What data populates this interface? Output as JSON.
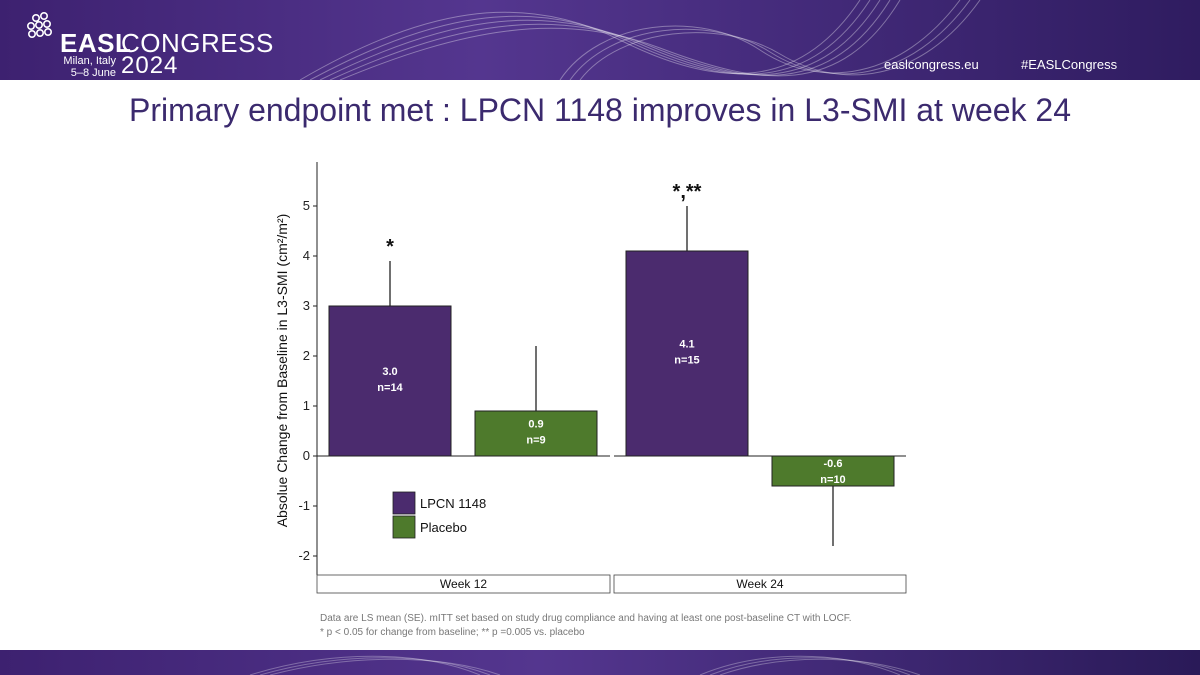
{
  "header": {
    "logo_easl": "EASL",
    "logo_congress": "CONGRESS",
    "logo_city": "Milan, Italy",
    "logo_dates": "5–8 June",
    "logo_year": "2024",
    "site": "easlcongress.eu",
    "hashtag": "#EASLCongress"
  },
  "slide": {
    "title": "Primary endpoint met : LPCN 1148 improves in L3-SMI at week 24"
  },
  "chart_data": {
    "type": "bar",
    "ylabel": "Absolue Change from Baseline in L3-SMI (cm²/m²)",
    "ylim": [
      -2.4,
      5.9
    ],
    "yticks": [
      -2,
      -1,
      0,
      1,
      2,
      3,
      4,
      5
    ],
    "ytick_labels": [
      "-2",
      "-1",
      "0",
      "1",
      "2",
      "3",
      "4",
      "5"
    ],
    "categories": [
      "Week 12",
      "Week 24"
    ],
    "series": [
      {
        "name": "LPCN 1148",
        "color": "#4b2b6e",
        "values": [
          3.0,
          4.1
        ],
        "errors": [
          0.9,
          0.9
        ],
        "labels": [
          "3.0",
          "4.1"
        ],
        "n_labels": [
          "n=14",
          "n=15"
        ]
      },
      {
        "name": "Placebo",
        "color": "#4e7a2c",
        "values": [
          0.9,
          -0.6
        ],
        "errors": [
          1.3,
          1.2
        ],
        "labels": [
          "0.9",
          "-0.6"
        ],
        "n_labels": [
          "n=9",
          "n=10"
        ]
      }
    ],
    "annotations": [
      {
        "category": 0,
        "series": 0,
        "text": "*"
      },
      {
        "category": 1,
        "series": 0,
        "text": "*,**"
      }
    ],
    "legend": "inside-lower-left"
  },
  "footnotes": [
    "Data are LS mean (SE). mITT set based on study drug compliance and having at least one post-baseline CT with LOCF.",
    "* p < 0.05 for change from baseline; ** p =0.005 vs. placebo"
  ]
}
